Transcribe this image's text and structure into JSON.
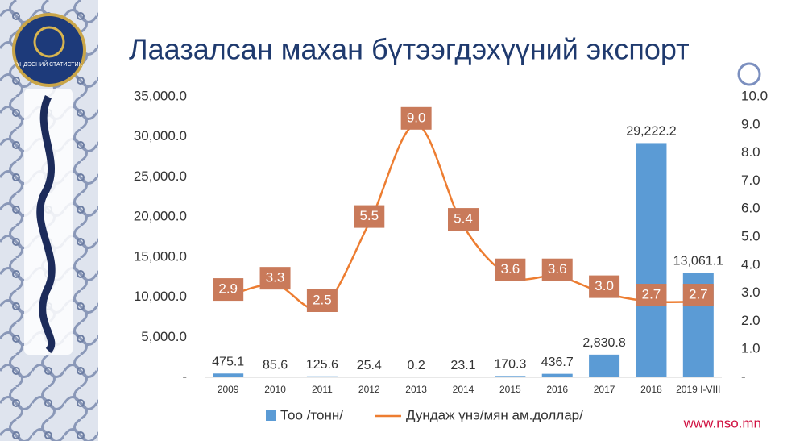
{
  "logo_text": "ҮНДЭСНИЙ СТАТИСТИК",
  "footer": "www.nso.mn",
  "chart_data": {
    "type": "bar-line",
    "title": "Лаазалсан махан бүтээгдэхүүний экспорт",
    "categories": [
      "2009",
      "2010",
      "2011",
      "2012",
      "2013",
      "2014",
      "2015",
      "2016",
      "2017",
      "2018",
      "2019 I-VIII"
    ],
    "series": [
      {
        "name": "Тоо /тонн/",
        "type": "bar",
        "color": "#5b9bd5",
        "values": [
          475.1,
          85.6,
          125.6,
          25.4,
          0.2,
          23.1,
          170.3,
          436.7,
          2830.8,
          29222.2,
          13061.1
        ],
        "value_labels": [
          "475.1",
          "85.6",
          "125.6",
          "25.4",
          "0.2",
          "23.1",
          "170.3",
          "436.7",
          "2,830.8",
          "29,222.2",
          "13,061.1"
        ]
      },
      {
        "name": "Дундаж үнэ/мян ам.доллар/",
        "type": "line",
        "axis": "y2",
        "color": "#ed7d31",
        "label_color": "#c97a5a",
        "values": [
          2.9,
          3.3,
          2.5,
          5.5,
          9.0,
          5.4,
          3.6,
          3.6,
          3.0,
          2.7,
          2.7
        ],
        "value_labels": [
          "2.9",
          "3.3",
          "2.5",
          "5.5",
          "9.0",
          "5.4",
          "3.6",
          "3.6",
          "3.0",
          "2.7",
          "2.7"
        ]
      }
    ],
    "ylim": [
      0,
      35000
    ],
    "yticks": [
      {
        "value": 0,
        "label": "-"
      },
      {
        "value": 5000,
        "label": "5,000.0"
      },
      {
        "value": 10000,
        "label": "10,000.0"
      },
      {
        "value": 15000,
        "label": "15,000.0"
      },
      {
        "value": 20000,
        "label": "20,000.0"
      },
      {
        "value": 25000,
        "label": "25,000.0"
      },
      {
        "value": 30000,
        "label": "30,000.0"
      },
      {
        "value": 35000,
        "label": "35,000.0"
      }
    ],
    "y2lim": [
      0,
      10
    ],
    "y2ticks": [
      {
        "value": 0,
        "label": "-"
      },
      {
        "value": 1,
        "label": "1.0"
      },
      {
        "value": 2,
        "label": "2.0"
      },
      {
        "value": 3,
        "label": "3.0"
      },
      {
        "value": 4,
        "label": "4.0"
      },
      {
        "value": 5,
        "label": "5.0"
      },
      {
        "value": 6,
        "label": "6.0"
      },
      {
        "value": 7,
        "label": "7.0"
      },
      {
        "value": 8,
        "label": "8.0"
      },
      {
        "value": 9,
        "label": "9.0"
      },
      {
        "value": 10,
        "label": "10.0"
      }
    ],
    "legend": "bottom"
  }
}
